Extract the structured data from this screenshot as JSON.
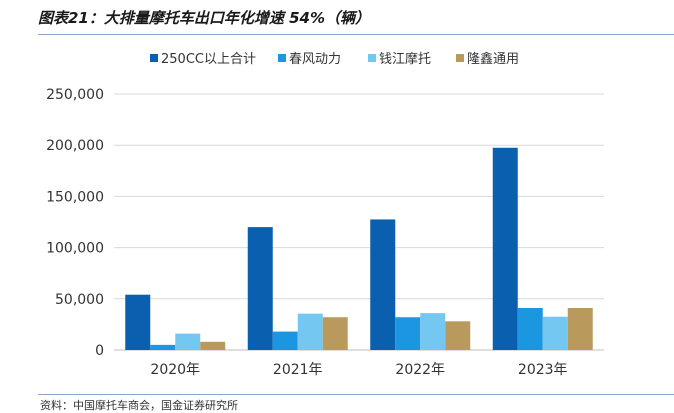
{
  "figure": {
    "title": "图表21：大排量摩托车出口年化增速 54%（辆）",
    "source": "资料：中国摩托车商会，国金证券研究所"
  },
  "colors": {
    "series": [
      "#0a5fae",
      "#1a97e0",
      "#74c7f0",
      "#b99a5c"
    ],
    "grid": "#d9d9d9",
    "text": "#333333"
  },
  "chart_data": {
    "type": "bar",
    "title": "",
    "xlabel": "",
    "ylabel": "",
    "categories": [
      "2020年",
      "2021年",
      "2022年",
      "2023年"
    ],
    "ylim": [
      0,
      250000
    ],
    "yticks": [
      "0",
      "50,000",
      "100,000",
      "150,000",
      "200,000",
      "250,000"
    ],
    "grid": true,
    "legend_position": "top",
    "series": [
      {
        "name": "250CC以上合计",
        "values": [
          54000,
          120000,
          127500,
          197500
        ]
      },
      {
        "name": "春风动力",
        "values": [
          5000,
          18000,
          32000,
          41000
        ]
      },
      {
        "name": "钱江摩托",
        "values": [
          16000,
          35500,
          36000,
          32500
        ]
      },
      {
        "name": "隆鑫通用",
        "values": [
          8000,
          32000,
          28000,
          41000
        ]
      }
    ]
  }
}
